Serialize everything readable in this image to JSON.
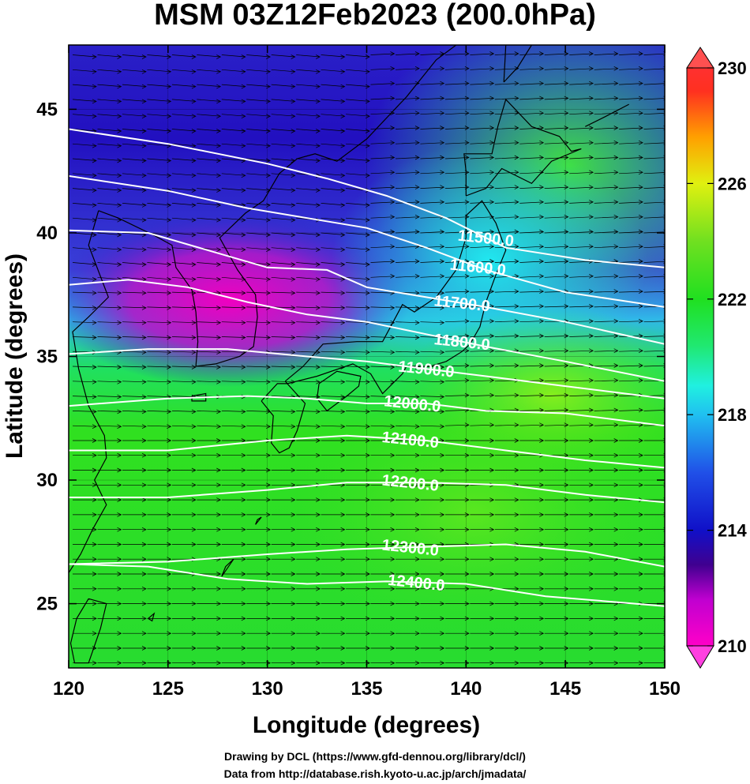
{
  "title": "MSM 03Z12Feb2023 (200.0hPa)",
  "map": {
    "xlabel": "Longitude (degrees)",
    "ylabel": "Latitude  (degrees)",
    "lon_range": [
      120,
      150
    ],
    "lat_range": [
      22.4,
      47.6
    ],
    "lon_ticks": [
      "120",
      "125",
      "130",
      "135",
      "140",
      "145",
      "150"
    ],
    "lat_ticks": [
      "25",
      "30",
      "35",
      "40",
      "45"
    ],
    "shading": "temperature",
    "field_colors": {
      "cold_core": "#e000c0",
      "cold": "#1a10c8",
      "cool": "#20d8f0",
      "mild": "#10e030",
      "warm": "#a0f010"
    },
    "contour_color": "#ffffff",
    "wind_vectors_color": "#000000",
    "coastline_color": "#000000"
  },
  "contours": [
    {
      "label": "11500.0",
      "points": [
        [
          120,
          44.2
        ],
        [
          125,
          43.6
        ],
        [
          130,
          42.8
        ],
        [
          133,
          42.2
        ],
        [
          136,
          41.5
        ],
        [
          139,
          40.6
        ],
        [
          142,
          39.4
        ],
        [
          146,
          38.9
        ],
        [
          150,
          38.6
        ]
      ]
    },
    {
      "label": "11600.0",
      "points": [
        [
          120,
          42.3
        ],
        [
          125,
          41.7
        ],
        [
          129,
          41.0
        ],
        [
          132,
          40.6
        ],
        [
          135,
          40.2
        ],
        [
          138,
          39.4
        ],
        [
          141,
          38.5
        ],
        [
          145,
          37.6
        ],
        [
          150,
          37.0
        ]
      ]
    },
    {
      "label": "11700.0",
      "points": [
        [
          120,
          40.1
        ],
        [
          124,
          40.0
        ],
        [
          127,
          39.3
        ],
        [
          130,
          38.6
        ],
        [
          133,
          38.5
        ],
        [
          135,
          37.8
        ],
        [
          138,
          37.4
        ],
        [
          141,
          37.0
        ],
        [
          145,
          36.4
        ],
        [
          150,
          35.5
        ]
      ]
    },
    {
      "label": "11800.0",
      "points": [
        [
          120,
          37.9
        ],
        [
          123,
          38.1
        ],
        [
          126,
          37.8
        ],
        [
          129,
          37.2
        ],
        [
          132,
          36.7
        ],
        [
          135,
          36.4
        ],
        [
          138,
          35.9
        ],
        [
          141,
          35.4
        ],
        [
          145,
          34.8
        ],
        [
          150,
          34.0
        ]
      ]
    },
    {
      "label": "11900.0",
      "points": [
        [
          120,
          35.1
        ],
        [
          124,
          35.3
        ],
        [
          128,
          35.3
        ],
        [
          132,
          35.0
        ],
        [
          135,
          34.8
        ],
        [
          138,
          34.5
        ],
        [
          141,
          34.2
        ],
        [
          145,
          33.8
        ],
        [
          150,
          33.3
        ]
      ]
    },
    {
      "label": "12000.0",
      "points": [
        [
          120,
          33.0
        ],
        [
          125,
          33.3
        ],
        [
          129,
          33.4
        ],
        [
          132,
          33.3
        ],
        [
          135,
          33.1
        ],
        [
          138,
          33.1
        ],
        [
          141,
          32.8
        ],
        [
          145,
          32.7
        ],
        [
          150,
          32.2
        ]
      ]
    },
    {
      "label": "12100.0",
      "points": [
        [
          120,
          31.2
        ],
        [
          125,
          31.2
        ],
        [
          130,
          31.6
        ],
        [
          134,
          31.8
        ],
        [
          138,
          31.6
        ],
        [
          142,
          31.2
        ],
        [
          146,
          30.8
        ],
        [
          150,
          30.5
        ]
      ]
    },
    {
      "label": "12200.0",
      "points": [
        [
          120,
          29.3
        ],
        [
          125,
          29.3
        ],
        [
          130,
          29.6
        ],
        [
          134,
          29.9
        ],
        [
          138,
          29.9
        ],
        [
          142,
          29.8
        ],
        [
          146,
          29.4
        ],
        [
          150,
          29.1
        ]
      ]
    },
    {
      "label": "12300.0",
      "points": [
        [
          120,
          26.6
        ],
        [
          125,
          26.7
        ],
        [
          130,
          27.0
        ],
        [
          134,
          27.2
        ],
        [
          138,
          27.3
        ],
        [
          142,
          27.4
        ],
        [
          146,
          27.1
        ],
        [
          150,
          26.5
        ]
      ]
    },
    {
      "label": "12400.0",
      "points": [
        [
          120,
          26.6
        ],
        [
          124,
          26.5
        ],
        [
          128,
          26.0
        ],
        [
          132,
          25.8
        ],
        [
          136,
          25.9
        ],
        [
          140,
          25.8
        ],
        [
          144,
          25.3
        ],
        [
          150,
          24.9
        ]
      ]
    }
  ],
  "colorbar": {
    "min": 210,
    "max": 230,
    "tick_labels": [
      "230",
      "226",
      "222",
      "218",
      "214",
      "210"
    ]
  },
  "credits": {
    "line1": "Drawing by DCL (https://www.gfd-dennou.org/library/dcl/)",
    "line2": "Data from http://database.rish.kyoto-u.ac.jp/arch/jmadata/"
  }
}
